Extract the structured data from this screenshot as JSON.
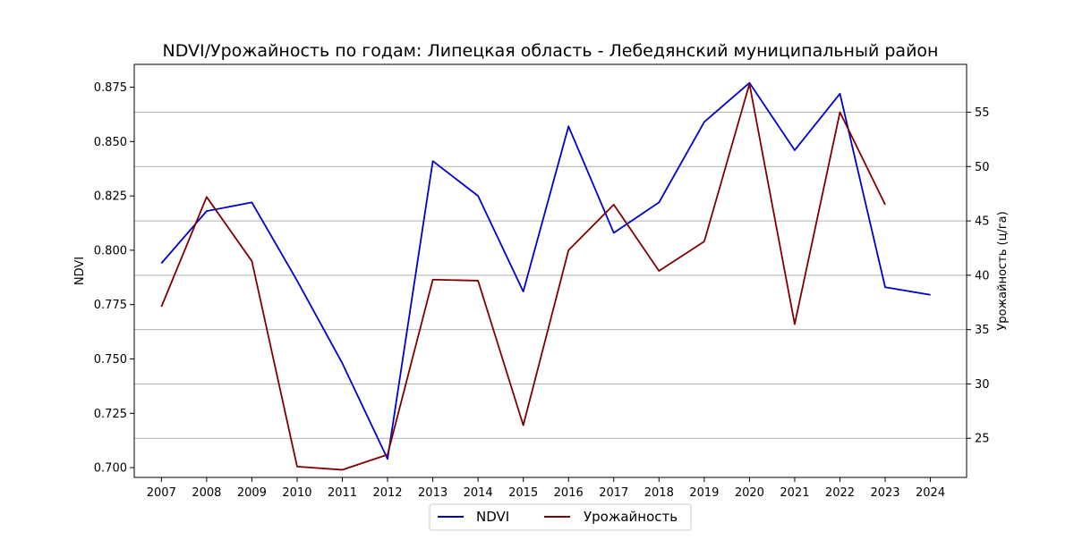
{
  "chart_data": {
    "type": "line",
    "title": "NDVI/Урожайность по годам: Липецкая область - Лебедянский муниципальный район",
    "x": [
      2007,
      2008,
      2009,
      2010,
      2011,
      2012,
      2013,
      2014,
      2015,
      2016,
      2017,
      2018,
      2019,
      2020,
      2021,
      2022,
      2023,
      2024
    ],
    "xlim": [
      2006.4,
      2024.8
    ],
    "y_left": {
      "label": "NDVI",
      "color": "#0000cc",
      "lim": [
        0.6955,
        0.8855
      ],
      "ticks": [
        "0.700",
        "0.725",
        "0.750",
        "0.775",
        "0.800",
        "0.825",
        "0.850",
        "0.875"
      ]
    },
    "y_right": {
      "label": "Урожайность (ц/га)",
      "color": "#800000",
      "lim": [
        21.4,
        59.4
      ],
      "ticks": [
        "25",
        "30",
        "35",
        "40",
        "45",
        "50",
        "55"
      ]
    },
    "grid": "right-axis horizontal",
    "legend": {
      "position": "bottom-center"
    },
    "series": [
      {
        "name": "NDVI",
        "axis": "left",
        "color": "#0000cc",
        "values": [
          0.794,
          0.818,
          0.822,
          0.786,
          0.748,
          0.704,
          0.841,
          0.825,
          0.781,
          0.857,
          0.808,
          0.822,
          0.859,
          0.877,
          0.846,
          0.872,
          0.783,
          0.7795
        ]
      },
      {
        "name": "Урожайность",
        "axis": "right",
        "color": "#800000",
        "values": [
          37.1,
          47.2,
          41.3,
          22.4,
          22.1,
          23.5,
          39.6,
          39.5,
          26.2,
          42.3,
          46.5,
          40.4,
          43.1,
          57.6,
          35.5,
          55.0,
          46.5,
          null
        ]
      }
    ]
  }
}
